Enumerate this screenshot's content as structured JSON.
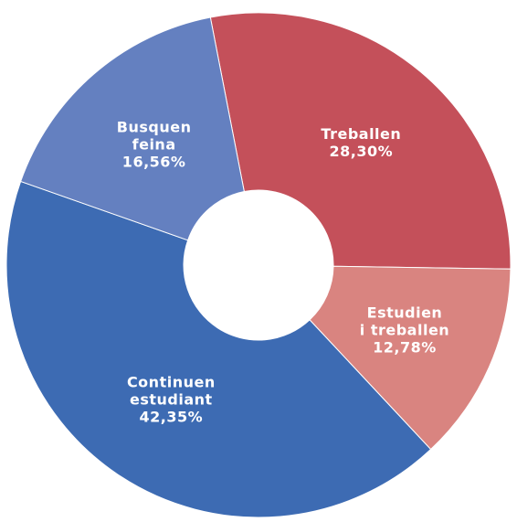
{
  "chart_data": {
    "type": "donut",
    "categories": [
      "Treballen",
      "Estudien\ni treballen",
      "Continuen\nestudiant",
      "Busquen\nfeina"
    ],
    "values": [
      28.3,
      12.78,
      42.35,
      16.56
    ],
    "value_labels": [
      "28,30%",
      "12,78%",
      "42,35%",
      "16,56%"
    ],
    "colors": [
      "#c4505a",
      "#d98480",
      "#3d6bb3",
      "#6480c0"
    ]
  }
}
